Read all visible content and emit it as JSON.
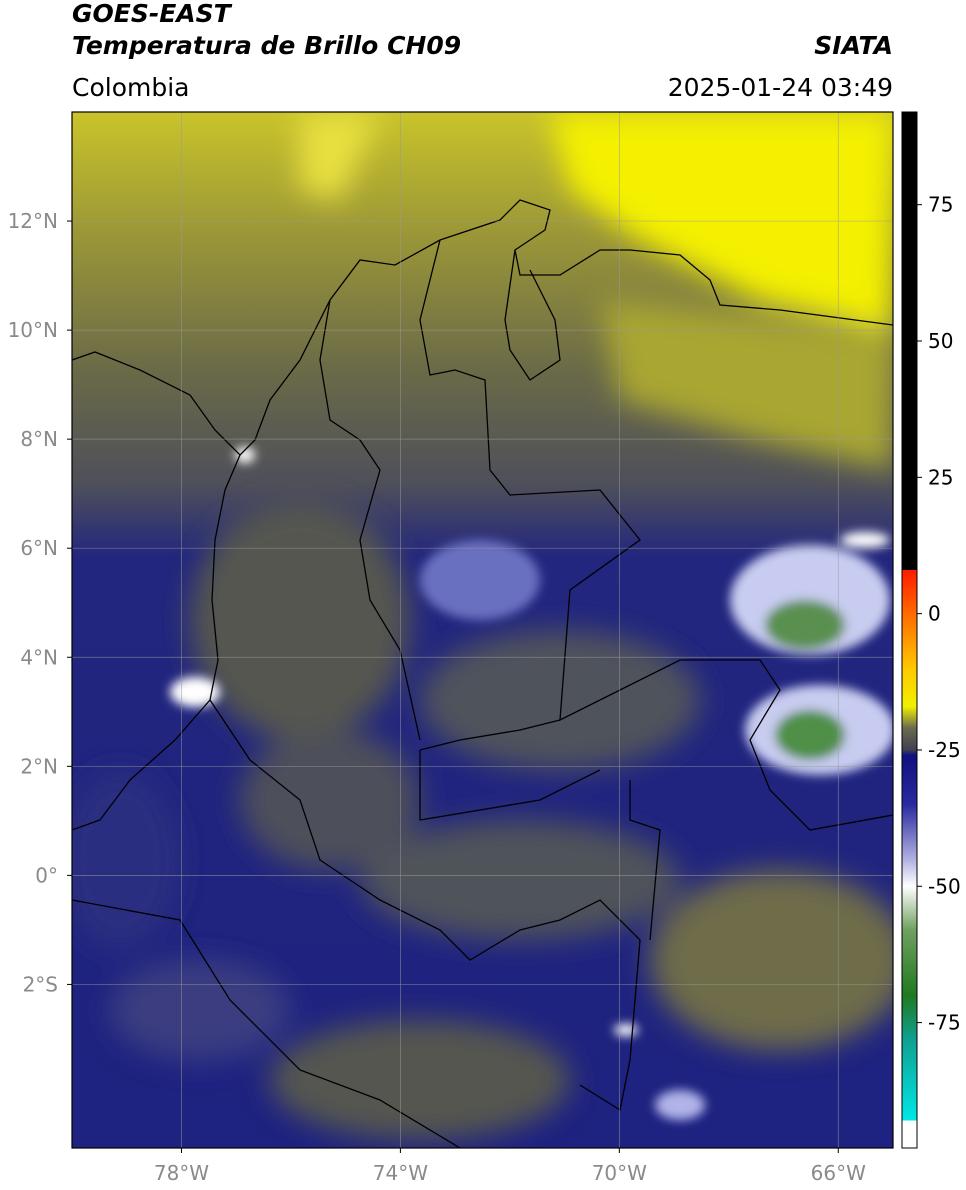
{
  "header": {
    "title": "GOES-EAST",
    "subtitle": "Temperatura de Brillo CH09",
    "region": "Colombia",
    "source": "SIATA",
    "timestamp": "2025-01-24 03:49"
  },
  "map": {
    "xlim": [
      -80,
      -65
    ],
    "ylim": [
      -5,
      14
    ],
    "grid": true,
    "xticks": [
      {
        "value": -78,
        "label": "78°W"
      },
      {
        "value": -74,
        "label": "74°W"
      },
      {
        "value": -70,
        "label": "70°W"
      },
      {
        "value": -66,
        "label": "66°W"
      }
    ],
    "yticks": [
      {
        "value": 12,
        "label": "12°N"
      },
      {
        "value": 10,
        "label": "10°N"
      },
      {
        "value": 8,
        "label": "8°N"
      },
      {
        "value": 6,
        "label": "6°N"
      },
      {
        "value": 4,
        "label": "4°N"
      },
      {
        "value": 2,
        "label": "2°N"
      },
      {
        "value": 0,
        "label": "0°"
      },
      {
        "value": -2,
        "label": "2°S"
      }
    ]
  },
  "colorbar": {
    "ylim": [
      -98,
      92
    ],
    "yticks": [
      75,
      50,
      25,
      0,
      -25,
      -50,
      -75
    ],
    "colors": [
      {
        "value": 92,
        "color": "#000000"
      },
      {
        "value": 8,
        "color": "#000000"
      },
      {
        "value": 8,
        "color": "#ff1a00"
      },
      {
        "value": 0,
        "color": "#ff6a00"
      },
      {
        "value": -10,
        "color": "#ffc800"
      },
      {
        "value": -17,
        "color": "#f0f000"
      },
      {
        "value": -21,
        "color": "#6a6a50"
      },
      {
        "value": -25,
        "color": "#404050"
      },
      {
        "value": -26,
        "color": "#101080"
      },
      {
        "value": -35,
        "color": "#2a2aa0"
      },
      {
        "value": -45,
        "color": "#b0b0e0"
      },
      {
        "value": -50,
        "color": "#ffffff"
      },
      {
        "value": -58,
        "color": "#70a060"
      },
      {
        "value": -70,
        "color": "#207a20"
      },
      {
        "value": -78,
        "color": "#10a090"
      },
      {
        "value": -93,
        "color": "#00e8e8"
      },
      {
        "value": -93,
        "color": "#ffffff"
      },
      {
        "value": -98,
        "color": "#ffffff"
      }
    ]
  }
}
